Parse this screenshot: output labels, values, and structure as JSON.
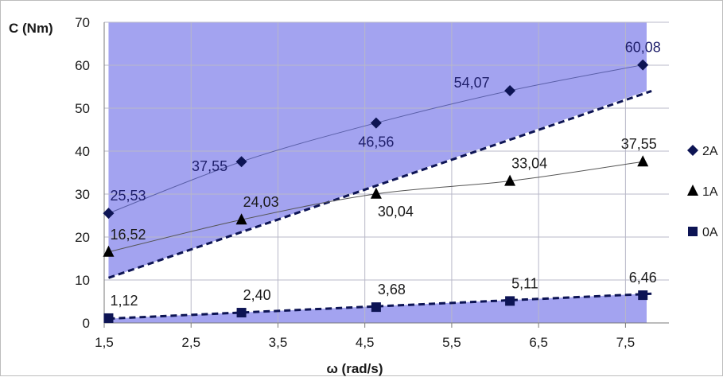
{
  "chart_data": {
    "type": "scatter",
    "xlabel": "ω (rad/s)",
    "ylabel": "C (Nm)",
    "xlim": [
      1.5,
      8.0
    ],
    "ylim": [
      0,
      70
    ],
    "x_ticks": [
      "1,5",
      "2,5",
      "3,5",
      "4,5",
      "5,5",
      "6,5",
      "7,5"
    ],
    "x_tick_values": [
      1.5,
      2.5,
      3.5,
      4.5,
      5.5,
      6.5,
      7.5
    ],
    "y_ticks": [
      "0",
      "10",
      "20",
      "30",
      "40",
      "50",
      "60",
      "70"
    ],
    "y_tick_values": [
      0,
      10,
      20,
      30,
      40,
      50,
      60,
      70
    ],
    "grid": true,
    "legend_position": "right",
    "shade_color": "#a3a3f0",
    "series": [
      {
        "name": "2A",
        "marker": "diamond",
        "color": "#0d1454",
        "x": [
          1.55,
          3.08,
          4.63,
          6.17,
          7.7
        ],
        "y": [
          25.53,
          37.55,
          46.56,
          54.07,
          60.08
        ],
        "labels": [
          "25,53",
          "37,55",
          "46,56",
          "54,07",
          "60,08"
        ]
      },
      {
        "name": "1A",
        "marker": "triangle",
        "color": "#000000",
        "x": [
          1.55,
          3.08,
          4.63,
          6.17,
          7.7
        ],
        "y": [
          16.52,
          24.03,
          30.04,
          33.04,
          37.55
        ],
        "labels": [
          "16,52",
          "24,03",
          "30,04",
          "33,04",
          "37,55"
        ]
      },
      {
        "name": "0A",
        "marker": "square",
        "color": "#0d1454",
        "x": [
          1.55,
          3.08,
          4.63,
          6.17,
          7.7
        ],
        "y": [
          1.12,
          2.4,
          3.68,
          5.11,
          6.46
        ],
        "labels": [
          "1,12",
          "2,40",
          "3,68",
          "5,11",
          "6,46"
        ]
      }
    ],
    "boundary_lines": [
      {
        "style": "dashed",
        "color": "#0d1454",
        "x": [
          1.55,
          7.8
        ],
        "y": [
          10.5,
          54.0
        ]
      },
      {
        "style": "dashed",
        "color": "#0d1454",
        "x": [
          1.55,
          7.8
        ],
        "y": [
          1.0,
          6.8
        ]
      }
    ]
  }
}
